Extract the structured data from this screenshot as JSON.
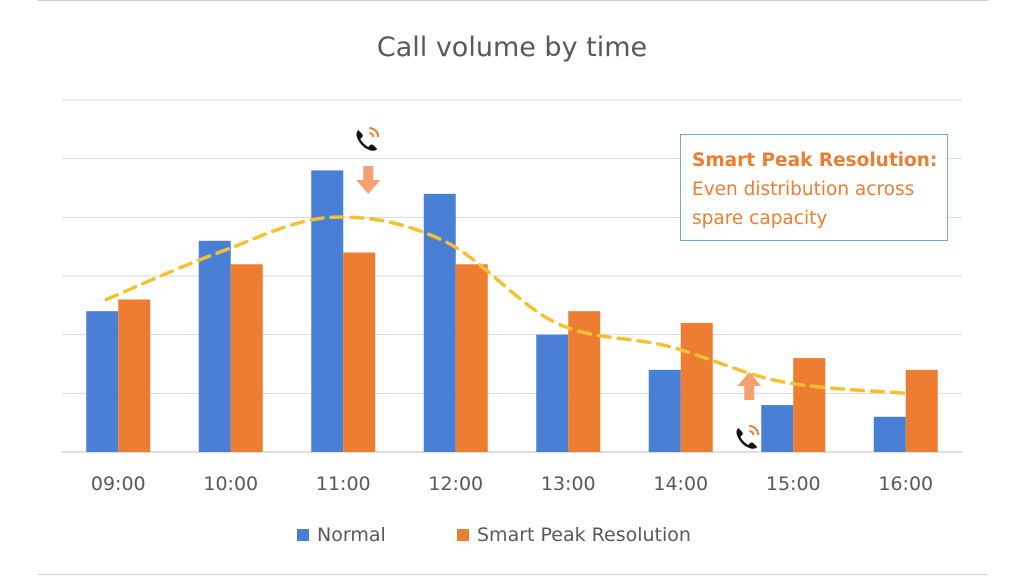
{
  "title": "Call volume by time",
  "colors": {
    "normal": "#4a7fd6",
    "smart": "#ed7d31",
    "trend": "#f6c131",
    "grid": "#d9d9d9",
    "arrow": "#f4a071"
  },
  "callout": {
    "heading": "Smart Peak Resolution:",
    "line1": "Even distribution across",
    "line2": "spare capacity"
  },
  "legend": {
    "normal": "Normal",
    "smart": "Smart Peak Resolution"
  },
  "icons": {
    "peak_marker": "phone-ringing-icon",
    "fill_marker": "phone-ringing-icon",
    "down_arrow": "arrow-down-icon",
    "up_arrow": "arrow-up-icon"
  },
  "chart_data": {
    "type": "bar",
    "categories": [
      "09:00",
      "10:00",
      "11:00",
      "12:00",
      "13:00",
      "14:00",
      "15:00",
      "16:00"
    ],
    "series": [
      {
        "name": "Normal",
        "values": [
          2.4,
          3.6,
          4.8,
          4.4,
          2.0,
          1.4,
          0.8,
          0.6
        ]
      },
      {
        "name": "Smart Peak Resolution",
        "values": [
          2.6,
          3.2,
          3.4,
          3.2,
          2.4,
          2.2,
          1.6,
          1.4
        ]
      }
    ],
    "trend": {
      "style": "dashed",
      "values": [
        2.6,
        3.4,
        4.0,
        3.6,
        2.2,
        1.8,
        1.2,
        1.0
      ]
    },
    "ylim": [
      0,
      6
    ],
    "grid": true,
    "y_tick_labels": false,
    "legend": "bottom"
  }
}
